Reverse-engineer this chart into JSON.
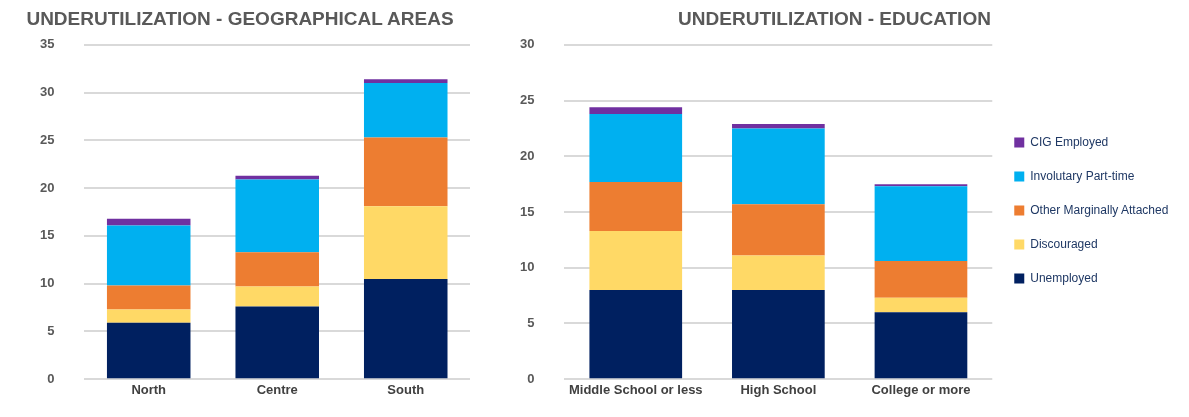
{
  "chart_data": [
    {
      "type": "bar",
      "title": "UNDERUTILIZATION - GEOGRAPHICAL AREAS",
      "categories": [
        "North",
        "Centre",
        "South"
      ],
      "stacked": true,
      "ylim": [
        0,
        35
      ],
      "yticks": [
        0,
        5,
        10,
        15,
        20,
        25,
        30,
        35
      ],
      "grid": "y",
      "legend": false,
      "series": [
        {
          "color": "#002060",
          "values": [
            5.9,
            7.6,
            10.5
          ]
        },
        {
          "color": "#ffd966",
          "values": [
            1.4,
            2.1,
            7.6
          ]
        },
        {
          "color": "#ed7d31",
          "values": [
            2.5,
            3.6,
            7.2
          ]
        },
        {
          "color": "#00b0f0",
          "values": [
            6.3,
            7.6,
            5.7
          ]
        },
        {
          "color": "#7030a0",
          "values": [
            0.7,
            0.4,
            0.4
          ]
        }
      ]
    },
    {
      "type": "bar",
      "title": "UNDERUTILIZATION - EDUCATION",
      "categories": [
        "Middle School or less",
        "High School",
        "College or more"
      ],
      "stacked": true,
      "ylim": [
        0,
        30
      ],
      "yticks": [
        0,
        5,
        10,
        15,
        20,
        25,
        30
      ],
      "grid": "y",
      "legend": "right",
      "series": [
        {
          "name": "Unemployed",
          "color": "#002060",
          "values": [
            8.0,
            8.0,
            6.0
          ]
        },
        {
          "name": "Discouraged",
          "color": "#ffd966",
          "values": [
            5.3,
            3.1,
            1.3
          ]
        },
        {
          "name": "Other Marginally Attached",
          "color": "#ed7d31",
          "values": [
            4.4,
            4.6,
            3.3
          ]
        },
        {
          "name": "Involutary Part-time",
          "color": "#00b0f0",
          "values": [
            6.1,
            6.8,
            6.7
          ]
        },
        {
          "name": "CIG Employed",
          "color": "#7030a0",
          "values": [
            0.6,
            0.4,
            0.2
          ]
        }
      ]
    }
  ]
}
